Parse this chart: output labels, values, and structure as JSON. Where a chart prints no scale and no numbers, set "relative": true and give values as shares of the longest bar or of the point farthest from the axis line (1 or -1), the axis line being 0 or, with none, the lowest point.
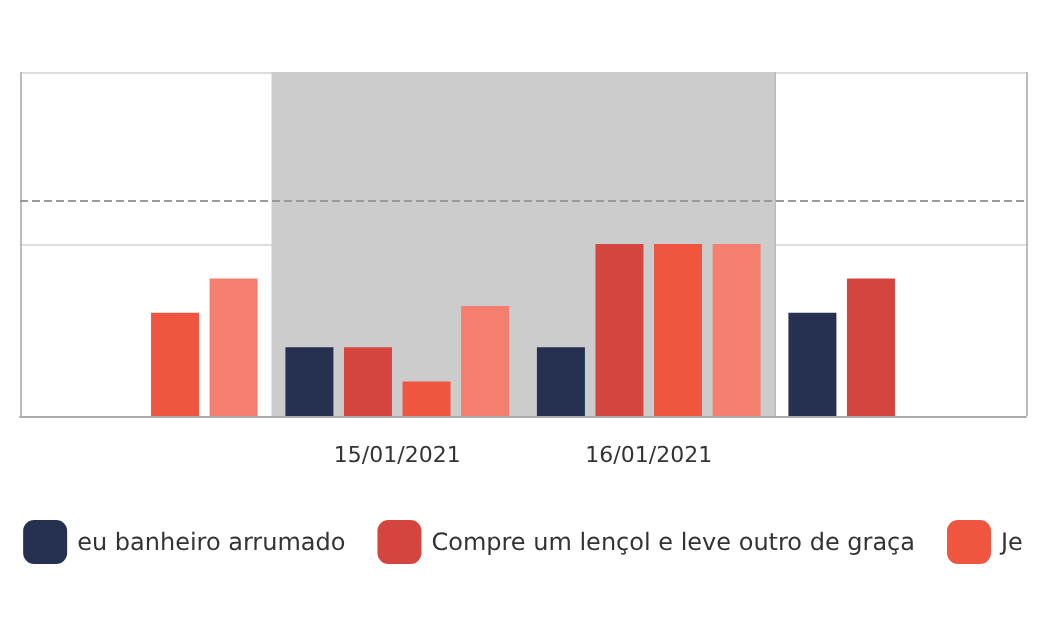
{
  "chart_data": {
    "type": "bar",
    "relative": true,
    "categories": [
      null,
      "15/01/2021",
      "16/01/2021",
      null
    ],
    "series": [
      {
        "name": "eu banheiro arrumado",
        "color": "#263051",
        "values": [
          null,
          0.4,
          0.4,
          0.6
        ]
      },
      {
        "name": "Compre um lençol e leve outro de graça",
        "color": "#d4463d",
        "values": [
          null,
          0.4,
          1,
          0.8
        ]
      },
      {
        "name": "Je",
        "color": "#f05540",
        "values": [
          0.6,
          0.2,
          1,
          null
        ]
      },
      {
        "color": "#f47f6e",
        "values": [
          0.8,
          0.64,
          1,
          null
        ]
      }
    ],
    "bands": [
      {
        "axis": "x",
        "from": "15/01/2021",
        "to": "16/01/2021",
        "color": "#cccccc"
      }
    ],
    "ref_lines": [
      {
        "axis": "y",
        "value": 1.25,
        "color": "#999999",
        "line_style": "dashed"
      }
    ],
    "grid": true,
    "legend": "bottom"
  }
}
